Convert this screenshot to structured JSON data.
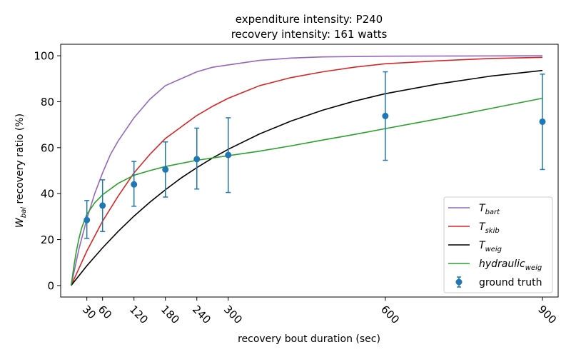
{
  "chart_data": {
    "type": "line",
    "title_lines": [
      "expenditure intensity: P240",
      "recovery intensity: 161 watts"
    ],
    "xlabel": "recovery bout duration (sec)",
    "ylabel": {
      "main": "W",
      "sub": "bal",
      "rest": " recovery ratio (%)"
    },
    "xlim": [
      -20,
      930
    ],
    "ylim": [
      -5,
      105
    ],
    "x_ticks": [
      30,
      60,
      120,
      180,
      240,
      300,
      600,
      900
    ],
    "y_ticks": [
      0,
      20,
      40,
      60,
      80,
      100
    ],
    "grid": false,
    "legend_position": "lower-right",
    "series": [
      {
        "name": "T",
        "sub": "bart",
        "italic": true,
        "color": "#9467bd",
        "style": "line",
        "x": [
          0,
          15,
          30,
          45,
          60,
          75,
          90,
          120,
          150,
          180,
          210,
          240,
          270,
          300,
          360,
          420,
          480,
          600,
          750,
          900
        ],
        "y": [
          0,
          16,
          29,
          40,
          49,
          57,
          63,
          73,
          81,
          87,
          90,
          93,
          95,
          96,
          98,
          99,
          99.5,
          99.8,
          99.9,
          100
        ]
      },
      {
        "name": "T",
        "sub": "skib",
        "italic": true,
        "color": "#d62728",
        "style": "line",
        "x": [
          0,
          30,
          60,
          90,
          120,
          150,
          180,
          210,
          240,
          270,
          300,
          360,
          420,
          480,
          540,
          600,
          700,
          800,
          900
        ],
        "y": [
          0,
          15,
          28,
          39,
          49,
          57,
          64,
          69,
          74,
          78,
          81.5,
          87,
          90.5,
          93,
          95,
          96.5,
          97.8,
          98.8,
          99.3
        ]
      },
      {
        "name": "T",
        "sub": "weig",
        "italic": true,
        "color": "#000000",
        "style": "line",
        "x": [
          0,
          30,
          60,
          90,
          120,
          150,
          180,
          210,
          240,
          270,
          300,
          360,
          420,
          480,
          540,
          600,
          700,
          800,
          900
        ],
        "y": [
          0,
          8.6,
          16.4,
          23.6,
          30.2,
          36.2,
          41.7,
          46.8,
          51.3,
          55.5,
          59.3,
          66,
          71.6,
          76.3,
          80.2,
          83.5,
          87.7,
          91.1,
          93.6
        ]
      },
      {
        "name": "hydraulic",
        "sub": "weig",
        "italic": true,
        "color": "#2ca02c",
        "style": "line",
        "x": [
          0,
          5,
          10,
          15,
          20,
          30,
          45,
          60,
          90,
          120,
          150,
          180,
          240,
          300,
          360,
          420,
          480,
          540,
          600,
          700,
          800,
          900
        ],
        "y": [
          0,
          8,
          15,
          20.5,
          25,
          31,
          36,
          39.5,
          44.5,
          48,
          50,
          51.8,
          54.5,
          56.5,
          58.5,
          60.8,
          63.3,
          65.7,
          68.3,
          72.5,
          77,
          81.5
        ]
      },
      {
        "name": "ground truth",
        "sub": "",
        "italic": false,
        "color": "#1f77b4",
        "style": "errorbar",
        "x": [
          30,
          60,
          120,
          180,
          240,
          300,
          600,
          900
        ],
        "y": [
          28.5,
          34.8,
          44,
          50.5,
          55,
          56.8,
          73.8,
          71.3
        ],
        "err_low": [
          20.5,
          23.5,
          34.5,
          38.5,
          42,
          40.5,
          54.5,
          50.5
        ],
        "err_high": [
          37,
          46,
          54,
          62.5,
          68.5,
          73,
          93,
          92
        ]
      }
    ]
  }
}
